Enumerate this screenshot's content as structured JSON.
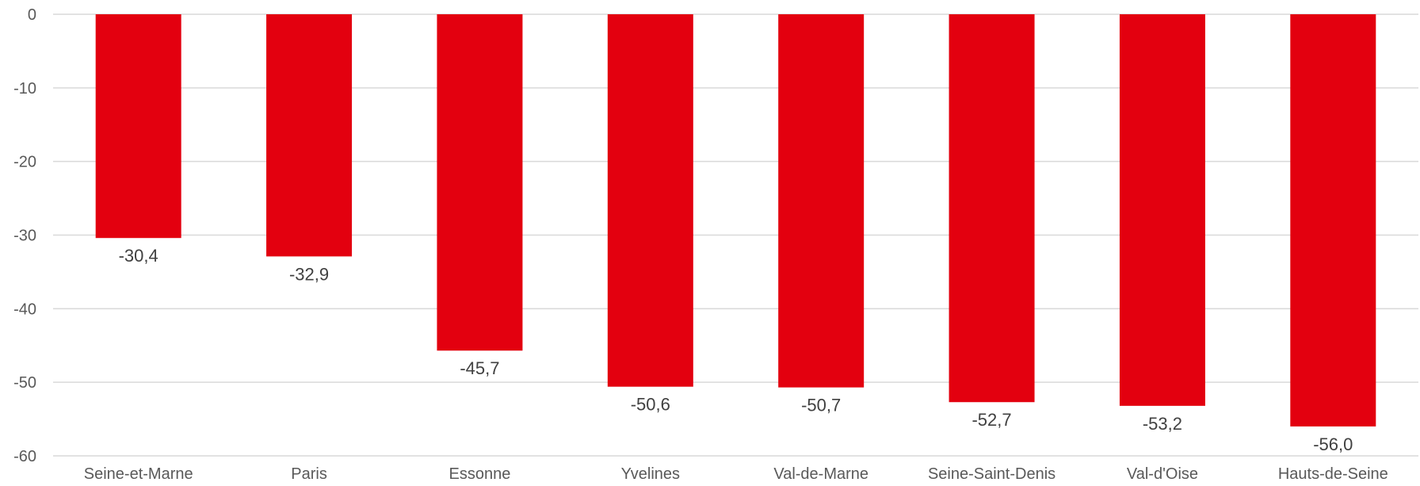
{
  "chart_data": {
    "type": "bar",
    "categories": [
      "Seine-et-Marne",
      "Paris",
      "Essonne",
      "Yvelines",
      "Val-de-Marne",
      "Seine-Saint-Denis",
      "Val-d'Oise",
      "Hauts-de-Seine"
    ],
    "values": [
      -30.4,
      -32.9,
      -45.7,
      -50.6,
      -50.7,
      -52.7,
      -53.2,
      -56.0
    ],
    "data_labels": [
      "-30,4",
      "-32,9",
      "-45,7",
      "-50,6",
      "-50,7",
      "-52,7",
      "-53,2",
      "-56,0"
    ],
    "ylim": [
      -60,
      0
    ],
    "yticks": [
      0,
      -10,
      -20,
      -30,
      -40,
      -50,
      -60
    ],
    "ytick_labels": [
      "0",
      "-10",
      "-20",
      "-30",
      "-40",
      "-50",
      "-60"
    ],
    "title": "",
    "xlabel": "",
    "ylabel": "",
    "grid": true,
    "legend": false,
    "bar_color": "#e3000f",
    "grid_color": "#d9d9d9"
  }
}
